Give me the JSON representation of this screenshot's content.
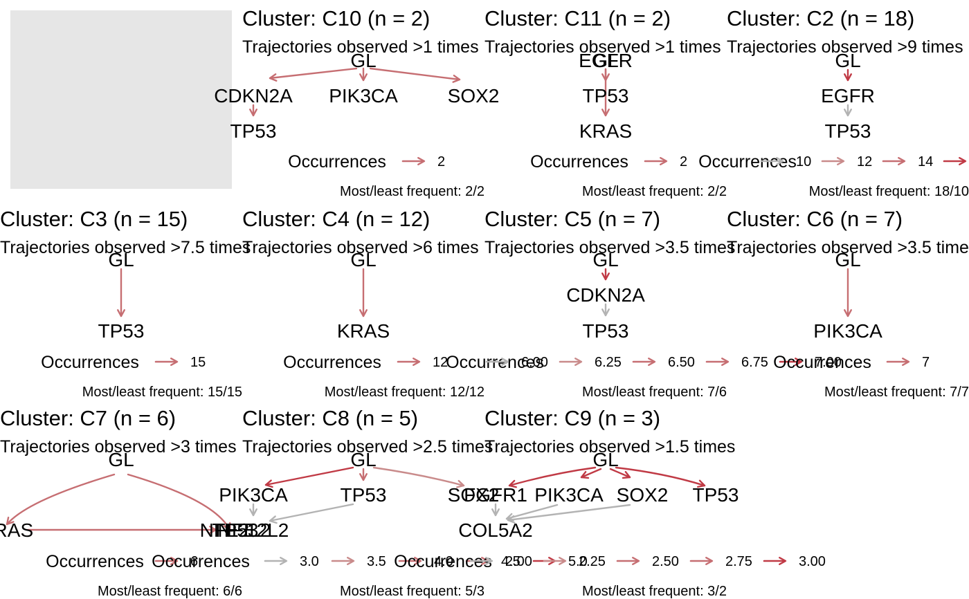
{
  "colors": {
    "grey": "#b3b3b3",
    "light_red": "#c98b8b",
    "mid_red": "#c66e72",
    "red": "#c03a45",
    "placeholder": "#e6e6e6"
  },
  "clusters": [
    {
      "key": "c10",
      "title": "Cluster: C10 (n = 2)",
      "subtitle": "Trajectories observed >1 times",
      "nodes": [
        {
          "id": "GL",
          "label": "GL"
        },
        {
          "id": "CDKN2A",
          "label": "CDKN2A"
        },
        {
          "id": "PIK3CA",
          "label": "PIK3CA"
        },
        {
          "id": "SOX2",
          "label": "SOX2"
        },
        {
          "id": "TP53",
          "label": "TP53"
        }
      ],
      "edges": [
        {
          "from": "GL",
          "to": "CDKN2A",
          "level": 2
        },
        {
          "from": "GL",
          "to": "PIK3CA",
          "level": 2
        },
        {
          "from": "GL",
          "to": "SOX2",
          "level": 2
        },
        {
          "from": "CDKN2A",
          "to": "TP53",
          "level": 2
        }
      ],
      "legend": {
        "title": "Occurrences",
        "items": [
          {
            "label": "2",
            "level": 2
          }
        ]
      },
      "caption": "Most/least frequent: 2/2"
    },
    {
      "key": "c11",
      "title": "Cluster: C11 (n = 2)",
      "subtitle": "Trajectories observed >1 times",
      "nodes": [
        {
          "id": "EGFR",
          "label": "EGFR"
        },
        {
          "id": "GL",
          "label": "GL"
        },
        {
          "id": "TP53",
          "label": "TP53"
        },
        {
          "id": "KRAS",
          "label": "KRAS"
        }
      ],
      "edges": [
        {
          "from": "EGFR",
          "to": "TP53",
          "level": 2
        },
        {
          "from": "GL",
          "to": "KRAS",
          "level": 2
        }
      ],
      "legend": {
        "title": "Occurrences",
        "items": [
          {
            "label": "2",
            "level": 2
          }
        ]
      },
      "caption": "Most/least frequent: 2/2"
    },
    {
      "key": "c2",
      "title": "Cluster: C2 (n = 18)",
      "subtitle": "Trajectories observed >9 times",
      "nodes": [
        {
          "id": "GL",
          "label": "GL"
        },
        {
          "id": "EGFR",
          "label": "EGFR"
        },
        {
          "id": "TP53",
          "label": "TP53"
        }
      ],
      "edges": [
        {
          "from": "GL",
          "to": "EGFR",
          "level": 4
        },
        {
          "from": "EGFR",
          "to": "TP53",
          "level": 0
        }
      ],
      "legend": {
        "title": "Occurrences",
        "items": [
          {
            "label": "10",
            "level": 0
          },
          {
            "label": "12",
            "level": 1
          },
          {
            "label": "14",
            "level": 2
          },
          {
            "label": "",
            "level": 4
          }
        ]
      },
      "caption": "Most/least frequent: 18/10"
    },
    {
      "key": "c3",
      "title": "Cluster: C3 (n = 15)",
      "subtitle": "Trajectories observed >7.5 times",
      "nodes": [
        {
          "id": "GL",
          "label": "GL"
        },
        {
          "id": "TP53",
          "label": "TP53"
        }
      ],
      "edges": [
        {
          "from": "GL",
          "to": "TP53",
          "level": 2
        }
      ],
      "legend": {
        "title": "Occurrences",
        "items": [
          {
            "label": "15",
            "level": 2
          }
        ]
      },
      "caption": "Most/least frequent: 15/15"
    },
    {
      "key": "c4",
      "title": "Cluster: C4 (n = 12)",
      "subtitle": "Trajectories observed >6 times",
      "nodes": [
        {
          "id": "GL",
          "label": "GL"
        },
        {
          "id": "KRAS",
          "label": "KRAS"
        }
      ],
      "edges": [
        {
          "from": "GL",
          "to": "KRAS",
          "level": 2
        }
      ],
      "legend": {
        "title": "Occurrences",
        "items": [
          {
            "label": "12",
            "level": 2
          }
        ]
      },
      "caption": "Most/least frequent: 12/12"
    },
    {
      "key": "c5",
      "title": "Cluster: C5 (n = 7)",
      "subtitle": "Trajectories observed >3.5 times",
      "nodes": [
        {
          "id": "GL",
          "label": "GL"
        },
        {
          "id": "CDKN2A",
          "label": "CDKN2A"
        },
        {
          "id": "TP53",
          "label": "TP53"
        }
      ],
      "edges": [
        {
          "from": "GL",
          "to": "CDKN2A",
          "level": 4
        },
        {
          "from": "CDKN2A",
          "to": "TP53",
          "level": 0
        }
      ],
      "legend": {
        "title": "Occurrences",
        "items": [
          {
            "label": "6.00",
            "level": 0
          },
          {
            "label": "6.25",
            "level": 1
          },
          {
            "label": "6.50",
            "level": 2
          },
          {
            "label": "6.75",
            "level": 3
          },
          {
            "label": "7.00",
            "level": 4
          }
        ]
      },
      "caption": "Most/least frequent: 7/6"
    },
    {
      "key": "c6",
      "title": "Cluster: C6 (n = 7)",
      "subtitle": "Trajectories observed >3.5 times",
      "nodes": [
        {
          "id": "GL",
          "label": "GL"
        },
        {
          "id": "PIK3CA",
          "label": "PIK3CA"
        }
      ],
      "edges": [
        {
          "from": "GL",
          "to": "PIK3CA",
          "level": 2
        }
      ],
      "legend": {
        "title": "Occurrences",
        "items": [
          {
            "label": "7",
            "level": 2
          }
        ]
      },
      "caption": "Most/least frequent: 7/7"
    },
    {
      "key": "c7",
      "title": "Cluster: C7 (n = 6)",
      "subtitle": "Trajectories observed >3 times",
      "nodes": [
        {
          "id": "GL",
          "label": "GL"
        },
        {
          "id": "KRAS",
          "label": "KRAS"
        },
        {
          "id": "TP53",
          "label": "TP53"
        },
        {
          "id": "NFE2L2",
          "label": "NFE2L2"
        }
      ],
      "edges": [
        {
          "from": "GL",
          "to": "KRAS",
          "level": 2
        },
        {
          "from": "GL",
          "to": "TP53",
          "level": 2
        },
        {
          "from": "KRAS",
          "to": "TP53",
          "level": 2
        }
      ],
      "legend": {
        "title": "Occurrences",
        "items": [
          {
            "label": "6",
            "level": 2
          }
        ]
      },
      "caption": "Most/least frequent: 6/6"
    },
    {
      "key": "c8",
      "title": "Cluster: C8 (n = 5)",
      "subtitle": "Trajectories observed >2.5 times",
      "nodes": [
        {
          "id": "GL",
          "label": "GL"
        },
        {
          "id": "PIK3CA",
          "label": "PIK3CA"
        },
        {
          "id": "TP53",
          "label": "TP53"
        },
        {
          "id": "SOX2",
          "label": "SOX2"
        },
        {
          "id": "NFE2L2",
          "label": "NFE2L2"
        }
      ],
      "edges": [
        {
          "from": "GL",
          "to": "PIK3CA",
          "level": 4
        },
        {
          "from": "GL",
          "to": "TP53",
          "level": 3
        },
        {
          "from": "GL",
          "to": "SOX2",
          "level": 1
        },
        {
          "from": "PIK3CA",
          "to": "NFE2L2",
          "level": 0
        },
        {
          "from": "TP53",
          "to": "NFE2L2",
          "level": 0
        }
      ],
      "legend": {
        "title": "Occurrences",
        "items": [
          {
            "label": "3.0",
            "level": 0
          },
          {
            "label": "3.5",
            "level": 1
          },
          {
            "label": "4.0",
            "level": 2
          },
          {
            "label": "4.5",
            "level": 3
          },
          {
            "label": "5.0",
            "level": 4
          }
        ]
      },
      "caption": "Most/least frequent: 5/3"
    },
    {
      "key": "c9",
      "title": "Cluster: C9 (n = 3)",
      "subtitle": "Trajectories observed >1.5 times",
      "nodes": [
        {
          "id": "GL",
          "label": "GL"
        },
        {
          "id": "FGFR1",
          "label": "FGFR1"
        },
        {
          "id": "PIK3CA",
          "label": "PIK3CA"
        },
        {
          "id": "SOX2",
          "label": "SOX2"
        },
        {
          "id": "TP53",
          "label": "TP53"
        },
        {
          "id": "COL5A2",
          "label": "COL5A2"
        }
      ],
      "edges": [
        {
          "from": "GL",
          "to": "FGFR1",
          "level": 4
        },
        {
          "from": "GL",
          "to": "PIK3CA",
          "level": 4
        },
        {
          "from": "GL",
          "to": "SOX2",
          "level": 4
        },
        {
          "from": "GL",
          "to": "TP53",
          "level": 4
        },
        {
          "from": "FGFR1",
          "to": "COL5A2",
          "level": 0
        },
        {
          "from": "PIK3CA",
          "to": "COL5A2",
          "level": 0
        },
        {
          "from": "SOX2",
          "to": "COL5A2",
          "level": 0
        }
      ],
      "legend": {
        "title": "Occurrences",
        "items": [
          {
            "label": "2.00",
            "level": 0
          },
          {
            "label": "2.25",
            "level": 1
          },
          {
            "label": "2.50",
            "level": 2
          },
          {
            "label": "2.75",
            "level": 3
          },
          {
            "label": "3.00",
            "level": 4
          }
        ]
      },
      "caption": "Most/least frequent: 3/2"
    }
  ]
}
